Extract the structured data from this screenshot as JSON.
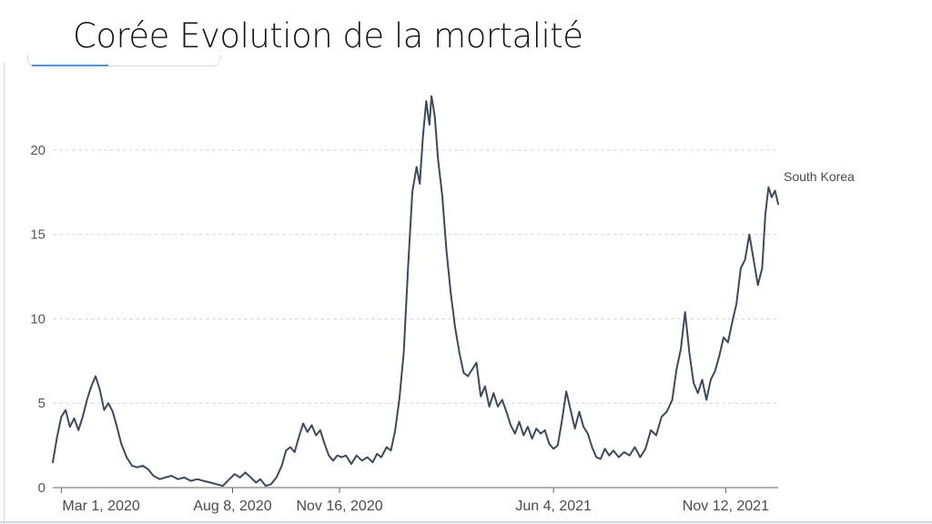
{
  "title": "Corée Evolution de la mortalité",
  "chart_data": {
    "type": "line",
    "y_ticks": [
      0,
      5,
      10,
      15,
      20
    ],
    "ylim": [
      0,
      23.5
    ],
    "x_ticks": [
      "Mar 1, 2020",
      "Aug 8, 2020",
      "Nov 16, 2020",
      "Jun 4, 2021",
      "Nov 12, 2021"
    ],
    "x_range": [
      "2020-02-22",
      "2021-12-31"
    ],
    "grid": true,
    "series": [
      {
        "name": "South Korea",
        "color": "#3d4a5c",
        "points": [
          [
            "2020-02-22",
            1.5
          ],
          [
            "2020-02-26",
            3.0
          ],
          [
            "2020-03-01",
            4.2
          ],
          [
            "2020-03-05",
            4.6
          ],
          [
            "2020-03-09",
            3.6
          ],
          [
            "2020-03-13",
            4.1
          ],
          [
            "2020-03-17",
            3.4
          ],
          [
            "2020-03-21",
            4.2
          ],
          [
            "2020-03-25",
            5.2
          ],
          [
            "2020-03-29",
            6.0
          ],
          [
            "2020-04-02",
            6.6
          ],
          [
            "2020-04-06",
            5.8
          ],
          [
            "2020-04-10",
            4.6
          ],
          [
            "2020-04-14",
            5.0
          ],
          [
            "2020-04-18",
            4.5
          ],
          [
            "2020-04-22",
            3.6
          ],
          [
            "2020-04-26",
            2.6
          ],
          [
            "2020-05-01",
            1.8
          ],
          [
            "2020-05-06",
            1.3
          ],
          [
            "2020-05-11",
            1.2
          ],
          [
            "2020-05-16",
            1.3
          ],
          [
            "2020-05-21",
            1.1
          ],
          [
            "2020-05-26",
            0.7
          ],
          [
            "2020-06-01",
            0.5
          ],
          [
            "2020-06-06",
            0.6
          ],
          [
            "2020-06-12",
            0.7
          ],
          [
            "2020-06-18",
            0.5
          ],
          [
            "2020-06-24",
            0.6
          ],
          [
            "2020-06-30",
            0.4
          ],
          [
            "2020-07-06",
            0.5
          ],
          [
            "2020-07-12",
            0.4
          ],
          [
            "2020-07-18",
            0.3
          ],
          [
            "2020-07-24",
            0.2
          ],
          [
            "2020-07-30",
            0.1
          ],
          [
            "2020-08-05",
            0.5
          ],
          [
            "2020-08-10",
            0.8
          ],
          [
            "2020-08-15",
            0.6
          ],
          [
            "2020-08-20",
            0.9
          ],
          [
            "2020-08-25",
            0.6
          ],
          [
            "2020-08-30",
            0.3
          ],
          [
            "2020-09-03",
            0.5
          ],
          [
            "2020-09-08",
            0.1
          ],
          [
            "2020-09-13",
            0.2
          ],
          [
            "2020-09-18",
            0.6
          ],
          [
            "2020-09-23",
            1.3
          ],
          [
            "2020-09-27",
            2.2
          ],
          [
            "2020-10-01",
            2.4
          ],
          [
            "2020-10-05",
            2.1
          ],
          [
            "2020-10-09",
            3.0
          ],
          [
            "2020-10-13",
            3.8
          ],
          [
            "2020-10-17",
            3.3
          ],
          [
            "2020-10-21",
            3.7
          ],
          [
            "2020-10-25",
            3.1
          ],
          [
            "2020-10-29",
            3.4
          ],
          [
            "2020-11-02",
            2.6
          ],
          [
            "2020-11-06",
            1.9
          ],
          [
            "2020-11-10",
            1.6
          ],
          [
            "2020-11-14",
            1.9
          ],
          [
            "2020-11-18",
            1.8
          ],
          [
            "2020-11-22",
            1.9
          ],
          [
            "2020-11-27",
            1.4
          ],
          [
            "2020-12-02",
            1.9
          ],
          [
            "2020-12-07",
            1.6
          ],
          [
            "2020-12-12",
            1.8
          ],
          [
            "2020-12-17",
            1.5
          ],
          [
            "2020-12-21",
            2.0
          ],
          [
            "2020-12-25",
            1.8
          ],
          [
            "2020-12-30",
            2.4
          ],
          [
            "2021-01-03",
            2.2
          ],
          [
            "2021-01-07",
            3.4
          ],
          [
            "2021-01-11",
            5.3
          ],
          [
            "2021-01-15",
            8.0
          ],
          [
            "2021-01-19",
            13.0
          ],
          [
            "2021-01-23",
            17.5
          ],
          [
            "2021-01-27",
            19.0
          ],
          [
            "2021-01-30",
            18.0
          ],
          [
            "2021-02-02",
            20.8
          ],
          [
            "2021-02-05",
            22.9
          ],
          [
            "2021-02-08",
            21.5
          ],
          [
            "2021-02-10",
            23.2
          ],
          [
            "2021-02-13",
            22.0
          ],
          [
            "2021-02-16",
            19.5
          ],
          [
            "2021-02-20",
            17.3
          ],
          [
            "2021-02-24",
            14.0
          ],
          [
            "2021-02-28",
            11.5
          ],
          [
            "2021-03-04",
            9.5
          ],
          [
            "2021-03-08",
            8.0
          ],
          [
            "2021-03-12",
            6.8
          ],
          [
            "2021-03-16",
            6.6
          ],
          [
            "2021-03-20",
            7.0
          ],
          [
            "2021-03-24",
            7.4
          ],
          [
            "2021-03-28",
            5.4
          ],
          [
            "2021-04-01",
            6.0
          ],
          [
            "2021-04-05",
            4.8
          ],
          [
            "2021-04-09",
            5.6
          ],
          [
            "2021-04-13",
            4.8
          ],
          [
            "2021-04-17",
            5.2
          ],
          [
            "2021-04-21",
            4.5
          ],
          [
            "2021-04-25",
            3.7
          ],
          [
            "2021-04-29",
            3.2
          ],
          [
            "2021-05-03",
            3.9
          ],
          [
            "2021-05-07",
            3.1
          ],
          [
            "2021-05-11",
            3.6
          ],
          [
            "2021-05-15",
            2.9
          ],
          [
            "2021-05-19",
            3.5
          ],
          [
            "2021-05-23",
            3.2
          ],
          [
            "2021-05-27",
            3.4
          ],
          [
            "2021-05-31",
            2.6
          ],
          [
            "2021-06-04",
            2.3
          ],
          [
            "2021-06-08",
            2.5
          ],
          [
            "2021-06-12",
            4.0
          ],
          [
            "2021-06-16",
            5.7
          ],
          [
            "2021-06-20",
            4.6
          ],
          [
            "2021-06-24",
            3.5
          ],
          [
            "2021-06-28",
            4.5
          ],
          [
            "2021-07-02",
            3.6
          ],
          [
            "2021-07-06",
            3.2
          ],
          [
            "2021-07-10",
            2.4
          ],
          [
            "2021-07-14",
            1.8
          ],
          [
            "2021-07-18",
            1.7
          ],
          [
            "2021-07-22",
            2.3
          ],
          [
            "2021-07-26",
            1.9
          ],
          [
            "2021-07-30",
            2.2
          ],
          [
            "2021-08-04",
            1.8
          ],
          [
            "2021-08-09",
            2.1
          ],
          [
            "2021-08-14",
            1.9
          ],
          [
            "2021-08-19",
            2.4
          ],
          [
            "2021-08-24",
            1.8
          ],
          [
            "2021-08-29",
            2.3
          ],
          [
            "2021-09-03",
            3.4
          ],
          [
            "2021-09-08",
            3.1
          ],
          [
            "2021-09-13",
            4.2
          ],
          [
            "2021-09-18",
            4.5
          ],
          [
            "2021-09-23",
            5.2
          ],
          [
            "2021-09-27",
            7.0
          ],
          [
            "2021-10-01",
            8.2
          ],
          [
            "2021-10-05",
            10.4
          ],
          [
            "2021-10-09",
            8.0
          ],
          [
            "2021-10-13",
            6.2
          ],
          [
            "2021-10-17",
            5.6
          ],
          [
            "2021-10-21",
            6.4
          ],
          [
            "2021-10-25",
            5.2
          ],
          [
            "2021-10-29",
            6.4
          ],
          [
            "2021-11-02",
            6.9
          ],
          [
            "2021-11-06",
            7.8
          ],
          [
            "2021-11-10",
            8.9
          ],
          [
            "2021-11-14",
            8.6
          ],
          [
            "2021-11-18",
            9.8
          ],
          [
            "2021-11-22",
            10.9
          ],
          [
            "2021-11-26",
            13.0
          ],
          [
            "2021-11-30",
            13.5
          ],
          [
            "2021-12-04",
            15.0
          ],
          [
            "2021-12-08",
            13.5
          ],
          [
            "2021-12-12",
            12.0
          ],
          [
            "2021-12-16",
            13.0
          ],
          [
            "2021-12-19",
            16.2
          ],
          [
            "2021-12-22",
            17.8
          ],
          [
            "2021-12-25",
            17.2
          ],
          [
            "2021-12-28",
            17.6
          ],
          [
            "2021-12-31",
            16.8
          ]
        ]
      }
    ]
  }
}
